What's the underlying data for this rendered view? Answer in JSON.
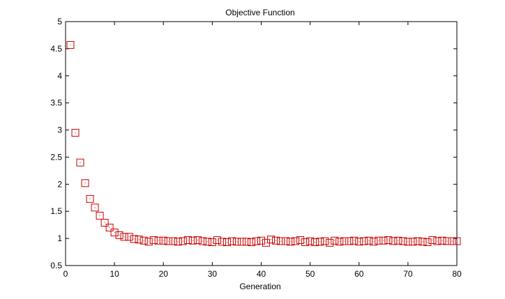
{
  "chart_data": {
    "type": "scatter",
    "title": "Objective Function",
    "xlabel": "Generation",
    "ylabel": "",
    "xlim": [
      0,
      80
    ],
    "ylim": [
      0.5,
      5
    ],
    "xticks": [
      0,
      10,
      20,
      30,
      40,
      50,
      60,
      70,
      80
    ],
    "yticks": [
      0.5,
      1,
      1.5,
      2,
      2.5,
      3,
      3.5,
      4,
      4.5,
      5
    ],
    "xtick_labels": [
      "0",
      "10",
      "20",
      "30",
      "40",
      "50",
      "60",
      "70",
      "80"
    ],
    "ytick_labels": [
      "0.5",
      "1",
      "1.5",
      "2",
      "2.5",
      "3",
      "3.5",
      "4",
      "4.5",
      "5"
    ],
    "grid": false,
    "legend": "none",
    "marker": "square",
    "marker_color": "#cc0000",
    "series": [
      {
        "x": [
          1,
          2,
          3,
          4,
          5,
          6,
          7,
          8,
          9,
          10,
          11,
          12,
          13,
          14,
          15,
          16,
          17,
          18,
          19,
          20,
          21,
          22,
          23,
          24,
          25,
          26,
          27,
          28,
          29,
          30,
          31,
          32,
          33,
          34,
          35,
          36,
          37,
          38,
          39,
          40,
          41,
          42,
          43,
          44,
          45,
          46,
          47,
          48,
          49,
          50,
          51,
          52,
          53,
          54,
          55,
          56,
          57,
          58,
          59,
          60,
          61,
          62,
          63,
          64,
          65,
          66,
          67,
          68,
          69,
          70,
          71,
          72,
          73,
          74,
          75,
          76,
          77,
          78,
          79,
          80
        ],
        "y": [
          4.57,
          2.95,
          2.4,
          2.02,
          1.73,
          1.57,
          1.42,
          1.29,
          1.2,
          1.11,
          1.06,
          1.03,
          1.03,
          0.99,
          0.98,
          0.96,
          0.94,
          0.97,
          0.96,
          0.96,
          0.95,
          0.95,
          0.94,
          0.95,
          0.97,
          0.96,
          0.97,
          0.95,
          0.94,
          0.93,
          0.97,
          0.94,
          0.93,
          0.95,
          0.94,
          0.94,
          0.94,
          0.93,
          0.95,
          0.96,
          0.92,
          0.98,
          0.96,
          0.95,
          0.95,
          0.94,
          0.95,
          0.97,
          0.93,
          0.95,
          0.93,
          0.94,
          0.95,
          0.92,
          0.96,
          0.94,
          0.95,
          0.95,
          0.96,
          0.94,
          0.95,
          0.96,
          0.94,
          0.96,
          0.96,
          0.97,
          0.95,
          0.96,
          0.95,
          0.94,
          0.94,
          0.95,
          0.94,
          0.93,
          0.97,
          0.95,
          0.96,
          0.95,
          0.95,
          0.95
        ]
      }
    ]
  }
}
